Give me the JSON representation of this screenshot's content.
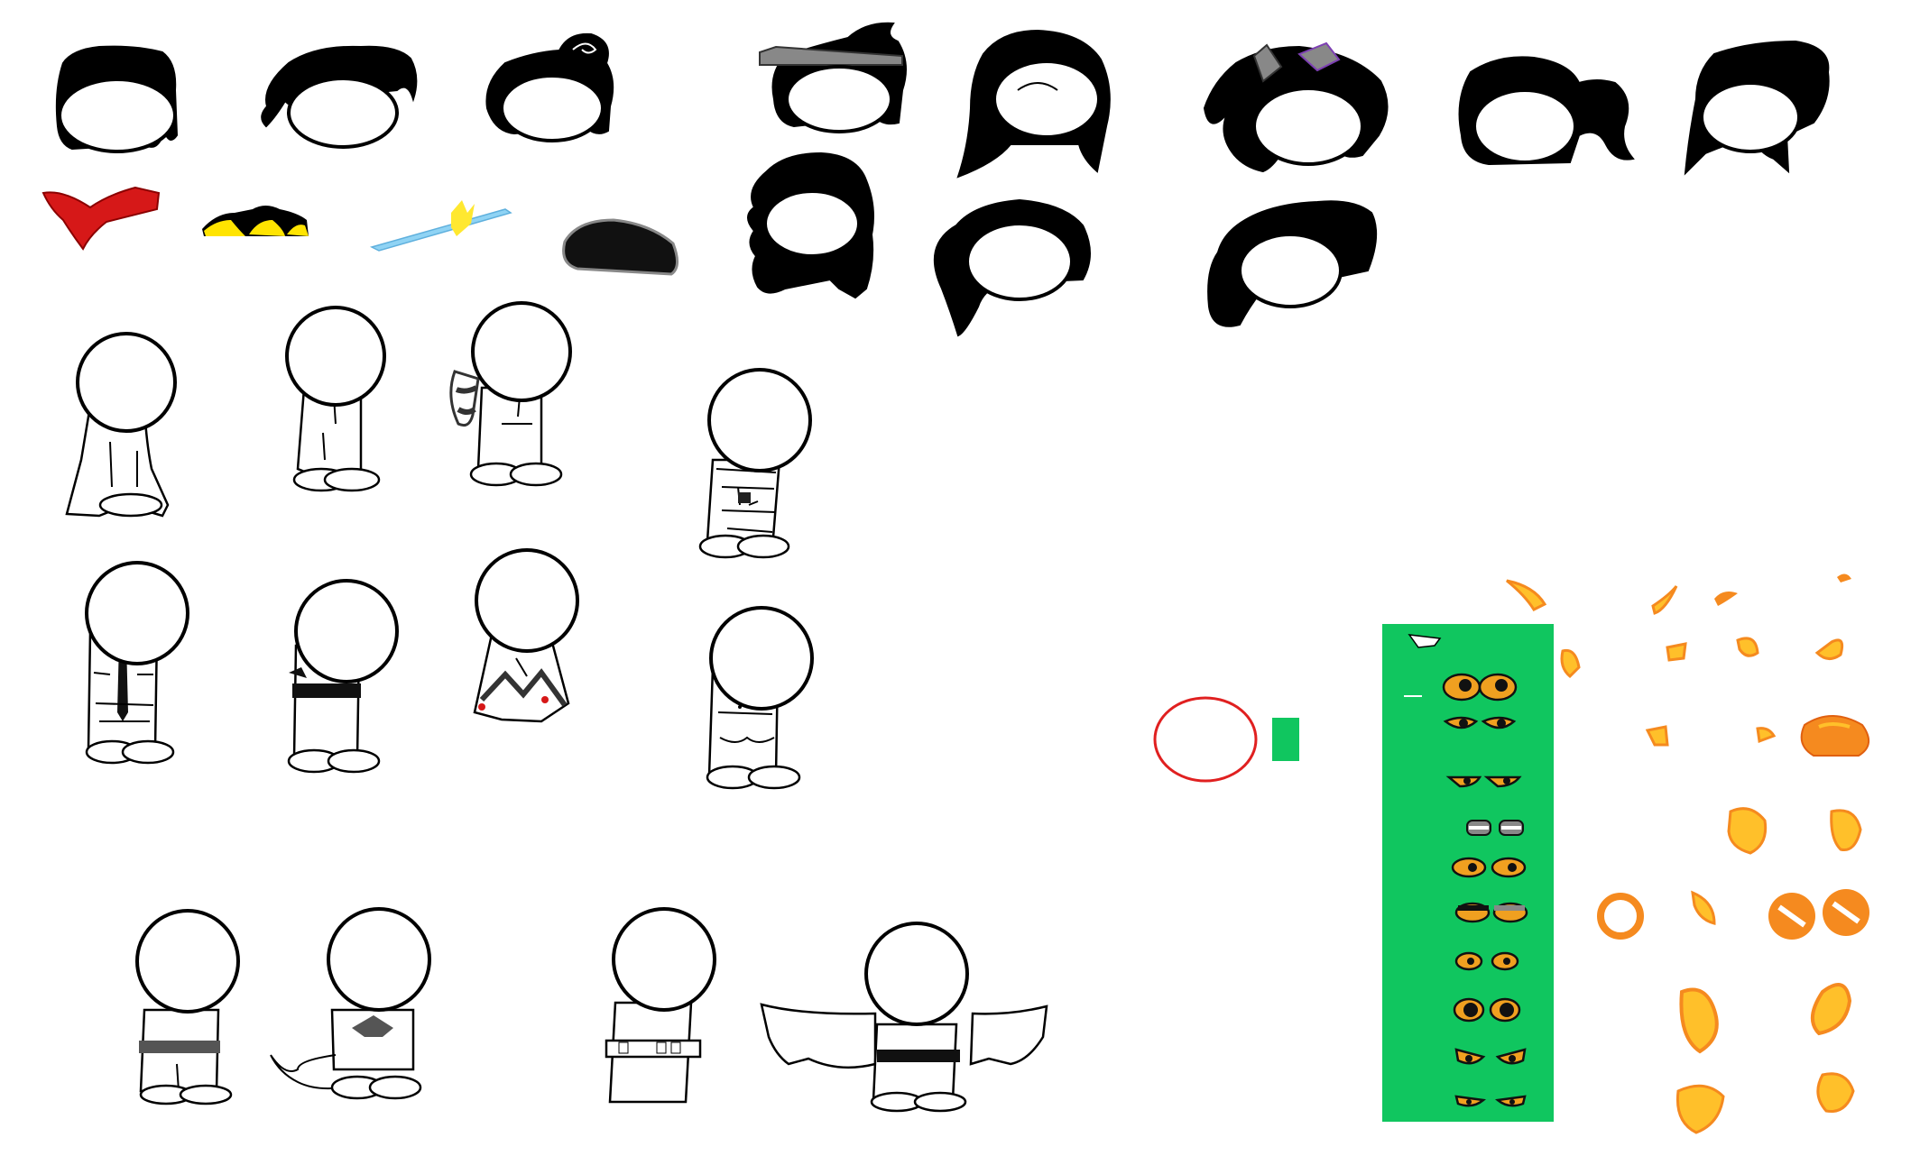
{
  "canvas": {
    "background": "#ffffff"
  },
  "colors": {
    "hair": "#000000",
    "outline": "#000000",
    "green_panel": "#10c65f",
    "eye_yellow": "#f0a020",
    "fire_orange": "#f58a1f",
    "fire_yellow": "#ffc02a",
    "red_bow": "#d61818",
    "yellow_hat": "#ffe400",
    "cyan_sword": "#8fd3f4",
    "red_circle": "#e02020"
  },
  "assets": {
    "hair_icons": [
      "hair-short-icon",
      "hair-messy-icon",
      "hair-bun-icon",
      "hair-headband-icon",
      "hair-long-icon",
      "hair-bow-icon",
      "hair-ponytail-icon",
      "hair-mullet-icon",
      "hair-spiky-icon",
      "hair-side-ponytail-icon",
      "hair-bob-icon"
    ],
    "accessory_icons": [
      "red-bow-icon",
      "yellow-hat-icon",
      "sword-icon",
      "black-beret-icon"
    ],
    "body_icons": [
      "body-cloak-icon",
      "body-shirt-icon",
      "body-tail-icon",
      "body-jacket-icon",
      "body-suit-tie-icon",
      "body-belt-icon",
      "body-dress-icon",
      "body-buttons-icon",
      "body-sash-icon",
      "body-mermaid-icon",
      "body-skirt-belt-icon",
      "body-wings-icon"
    ],
    "eye_icons": [
      "eyes-1-icon",
      "eyes-2-icon",
      "eyes-3-icon",
      "eyes-4-icon",
      "eyes-5-icon",
      "eyes-6-icon",
      "eyes-7-icon",
      "eyes-8-icon",
      "eyes-9-icon",
      "eyes-10-icon"
    ],
    "fire_icons": [
      "fire-sprite-icon"
    ],
    "misc_icons": [
      "red-circle-icon",
      "green-rectangle-icon"
    ]
  }
}
